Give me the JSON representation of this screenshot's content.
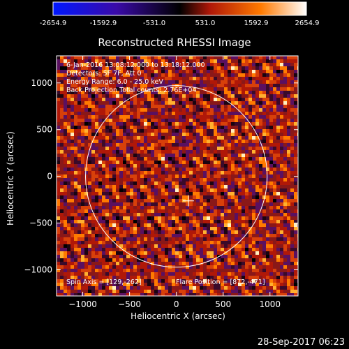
{
  "colorbar": {
    "ticks": [
      "-2654.9",
      "-1592.9",
      "-531.0",
      "531.0",
      "1592.9",
      "2654.9"
    ],
    "min": -2654.9,
    "max": 2654.9,
    "colors": [
      "#0018ff",
      "#3a0aa8",
      "#000000",
      "#b01808",
      "#ff7a00",
      "#ffffff"
    ]
  },
  "chart_data": {
    "type": "heatmap",
    "title": "Reconstructed RHESSI Image",
    "xlabel": "Heliocentric X (arcsec)",
    "ylabel": "Heliocentric Y (arcsec)",
    "xlim": [
      -1280,
      1300
    ],
    "ylim": [
      -1280,
      1290
    ],
    "xticks": [
      -1000,
      -500,
      0,
      500,
      1000
    ],
    "yticks": [
      -1000,
      -500,
      0,
      500,
      1000
    ],
    "solar_limb_radius_arcsec": 970,
    "crosshair": [
      129,
      -262
    ],
    "annotations": {
      "time": "6-Jan-2016 13:08:12.000 to 13:18:12.000",
      "detectors": "Detectors: 5F 7F, Att 0",
      "energy": "Energy Range: 6.0 - 25.0 keV",
      "method": "Back Projection    Total counts: 2.76E+04",
      "spin_axis": "Spin Axis = [129,-262]",
      "flare_position": "Flare Position = [872,-471]"
    },
    "footer_timestamp": "28-Sep-2017 06:23"
  }
}
